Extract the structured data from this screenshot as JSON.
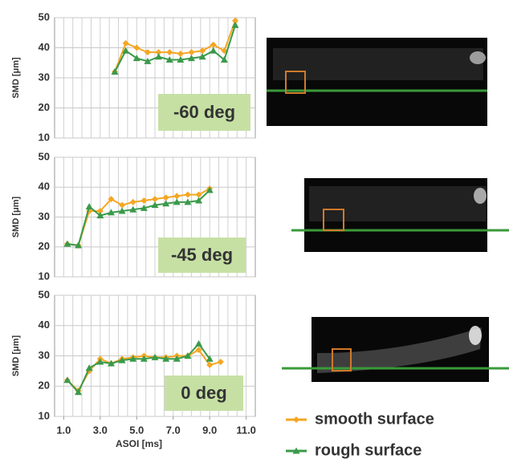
{
  "chart_data": [
    {
      "type": "line",
      "ylabel": "SMD [μm]",
      "annotation": "-60 deg",
      "ylim": [
        10,
        50
      ],
      "yticks": [
        10,
        20,
        30,
        40,
        50
      ],
      "xlim": [
        0.5,
        11.5
      ],
      "x_grid_step": 0.5,
      "grid": true,
      "x": [
        3.8,
        4.4,
        5.0,
        5.6,
        6.2,
        6.8,
        7.4,
        8.0,
        8.6,
        9.2,
        9.8,
        10.4
      ],
      "series": [
        {
          "color": "#f5a623",
          "values": [
            32,
            41.5,
            40,
            38.5,
            38.5,
            38.5,
            38,
            38.5,
            39,
            41,
            39,
            49
          ]
        },
        {
          "color": "#3a9a4a",
          "values": [
            32,
            39,
            36.5,
            35.5,
            37,
            36,
            36,
            36.5,
            37,
            39,
            36,
            47.5
          ]
        }
      ]
    },
    {
      "type": "line",
      "ylabel": "SMD [μm]",
      "annotation": "-45 deg",
      "ylim": [
        10,
        50
      ],
      "yticks": [
        10,
        20,
        30,
        40,
        50
      ],
      "xlim": [
        0.5,
        11.5
      ],
      "x_grid_step": 0.5,
      "grid": true,
      "x": [
        1.2,
        1.8,
        2.4,
        3.0,
        3.6,
        4.2,
        4.8,
        5.4,
        6.0,
        6.6,
        7.2,
        7.8,
        8.4,
        9.0
      ],
      "series": [
        {
          "color": "#f5a623",
          "values": [
            21,
            20.5,
            32,
            32,
            36,
            34,
            35,
            35.5,
            36,
            36.5,
            37,
            37.5,
            37.5,
            39.5
          ]
        },
        {
          "color": "#3a9a4a",
          "values": [
            21,
            20.5,
            33.5,
            30.5,
            31.5,
            32,
            32.5,
            33,
            34,
            34.5,
            35,
            35,
            35.5,
            39
          ]
        }
      ]
    },
    {
      "type": "line",
      "ylabel": "SMD [μm]",
      "xlabel": "ASOI [ms]",
      "annotation": "0 deg",
      "ylim": [
        10,
        50
      ],
      "yticks": [
        10,
        20,
        30,
        40,
        50
      ],
      "xlim": [
        0.5,
        11.5
      ],
      "x_grid_step": 0.5,
      "grid": true,
      "xticks": [
        {
          "value": 1,
          "label": "1.0"
        },
        {
          "value": 3,
          "label": "3.0"
        },
        {
          "value": 5,
          "label": "5.0"
        },
        {
          "value": 7,
          "label": "7.0"
        },
        {
          "value": 9,
          "label": "9.0"
        },
        {
          "value": 11,
          "label": "11.0"
        }
      ],
      "x": [
        1.2,
        1.8,
        2.4,
        3.0,
        3.6,
        4.2,
        4.8,
        5.4,
        6.0,
        6.6,
        7.2,
        7.8,
        8.4,
        9.0,
        9.6
      ],
      "series": [
        {
          "name": "smooth surface",
          "color": "#f5a623",
          "values": [
            22,
            18.5,
            25,
            29,
            27.5,
            29,
            29.5,
            30,
            29.5,
            29.5,
            30,
            30,
            32,
            27,
            28
          ]
        },
        {
          "name": "rough surface",
          "color": "#3a9a4a",
          "values": [
            22,
            18,
            26,
            28,
            27.5,
            28.5,
            29,
            29,
            29.5,
            29,
            29,
            30,
            34,
            29,
            null
          ]
        }
      ]
    }
  ]
}
